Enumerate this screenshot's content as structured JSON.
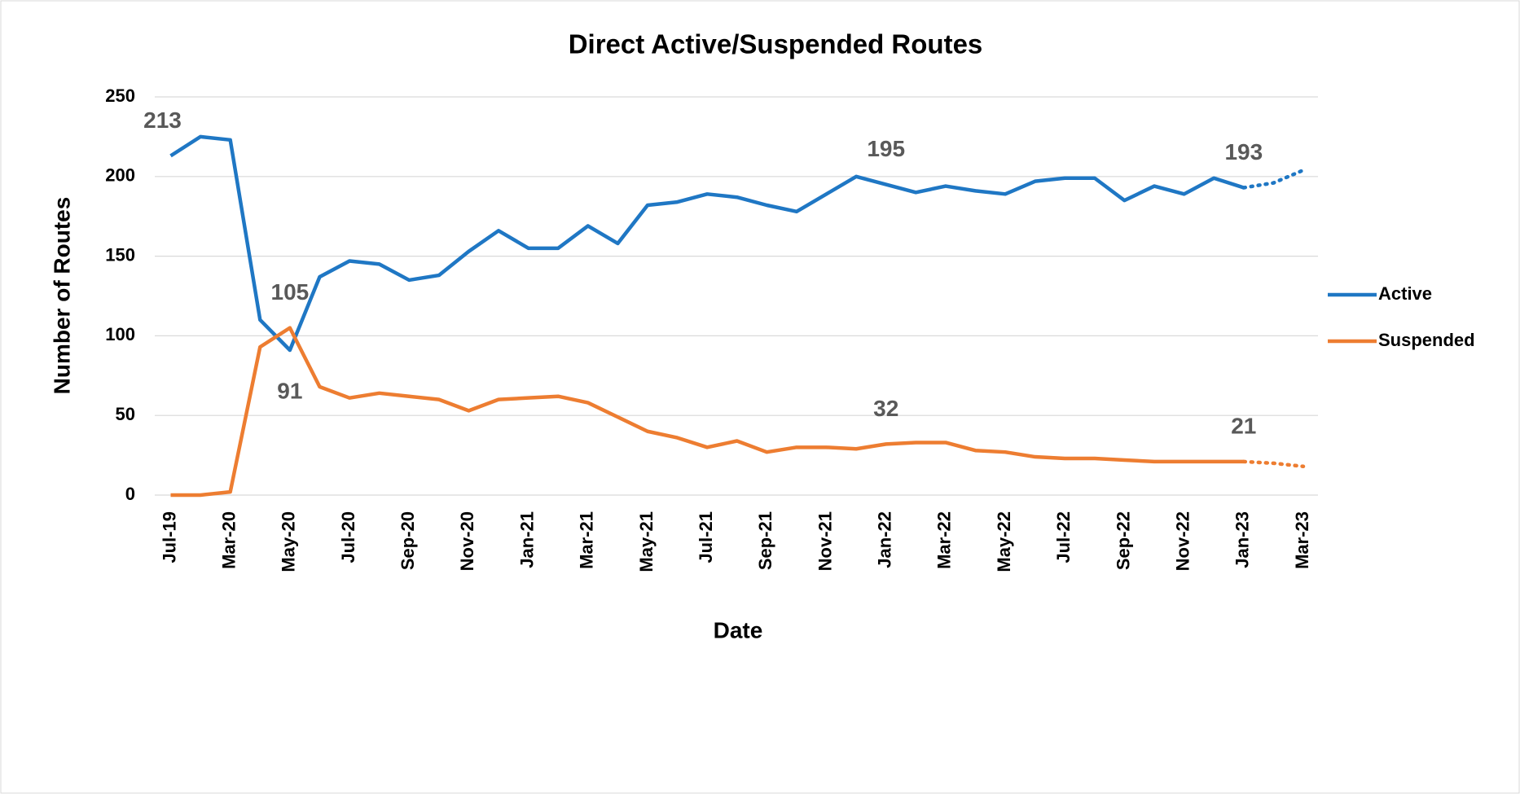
{
  "chart_data": {
    "type": "line",
    "title": "Direct Active/Suspended Routes",
    "x_label": "Date",
    "y_label": "Number of Routes",
    "categories": [
      "Jul-19",
      null,
      "Mar-20",
      null,
      "May-20",
      null,
      "Jul-20",
      null,
      "Sep-20",
      null,
      "Nov-20",
      null,
      "Jan-21",
      null,
      "Mar-21",
      null,
      "May-21",
      null,
      "Jul-21",
      null,
      "Sep-21",
      null,
      "Nov-21",
      null,
      "Jan-22",
      null,
      "Mar-22",
      null,
      "May-22",
      null,
      "Jul-22",
      null,
      "Sep-22",
      null,
      "Nov-22",
      null,
      "Jan-23",
      null,
      "Mar-23"
    ],
    "series": [
      {
        "name": "Active",
        "color": "#1f77c4",
        "dotted_from": 36,
        "labels_at": [
          0,
          4,
          24,
          36
        ],
        "values": [
          213,
          225,
          223,
          110,
          91,
          137,
          147,
          145,
          135,
          138,
          153,
          166,
          155,
          155,
          169,
          158,
          182,
          184,
          189,
          187,
          182,
          178,
          189,
          200,
          195,
          190,
          194,
          191,
          189,
          197,
          199,
          199,
          185,
          194,
          189,
          199,
          193,
          196,
          204
        ]
      },
      {
        "name": "Suspended",
        "color": "#ed7d31",
        "dotted_from": 36,
        "labels_at": [
          4,
          24,
          36
        ],
        "values": [
          0,
          0,
          2,
          93,
          105,
          68,
          61,
          64,
          62,
          60,
          53,
          60,
          61,
          62,
          58,
          49,
          40,
          36,
          30,
          34,
          27,
          30,
          30,
          29,
          32,
          33,
          33,
          28,
          27,
          24,
          23,
          23,
          22,
          21,
          21,
          21,
          21,
          20,
          18
        ]
      }
    ],
    "ylim": [
      0,
      250
    ],
    "yticks": [
      0,
      50,
      100,
      150,
      200,
      250
    ],
    "grid": true,
    "legend": "right"
  }
}
